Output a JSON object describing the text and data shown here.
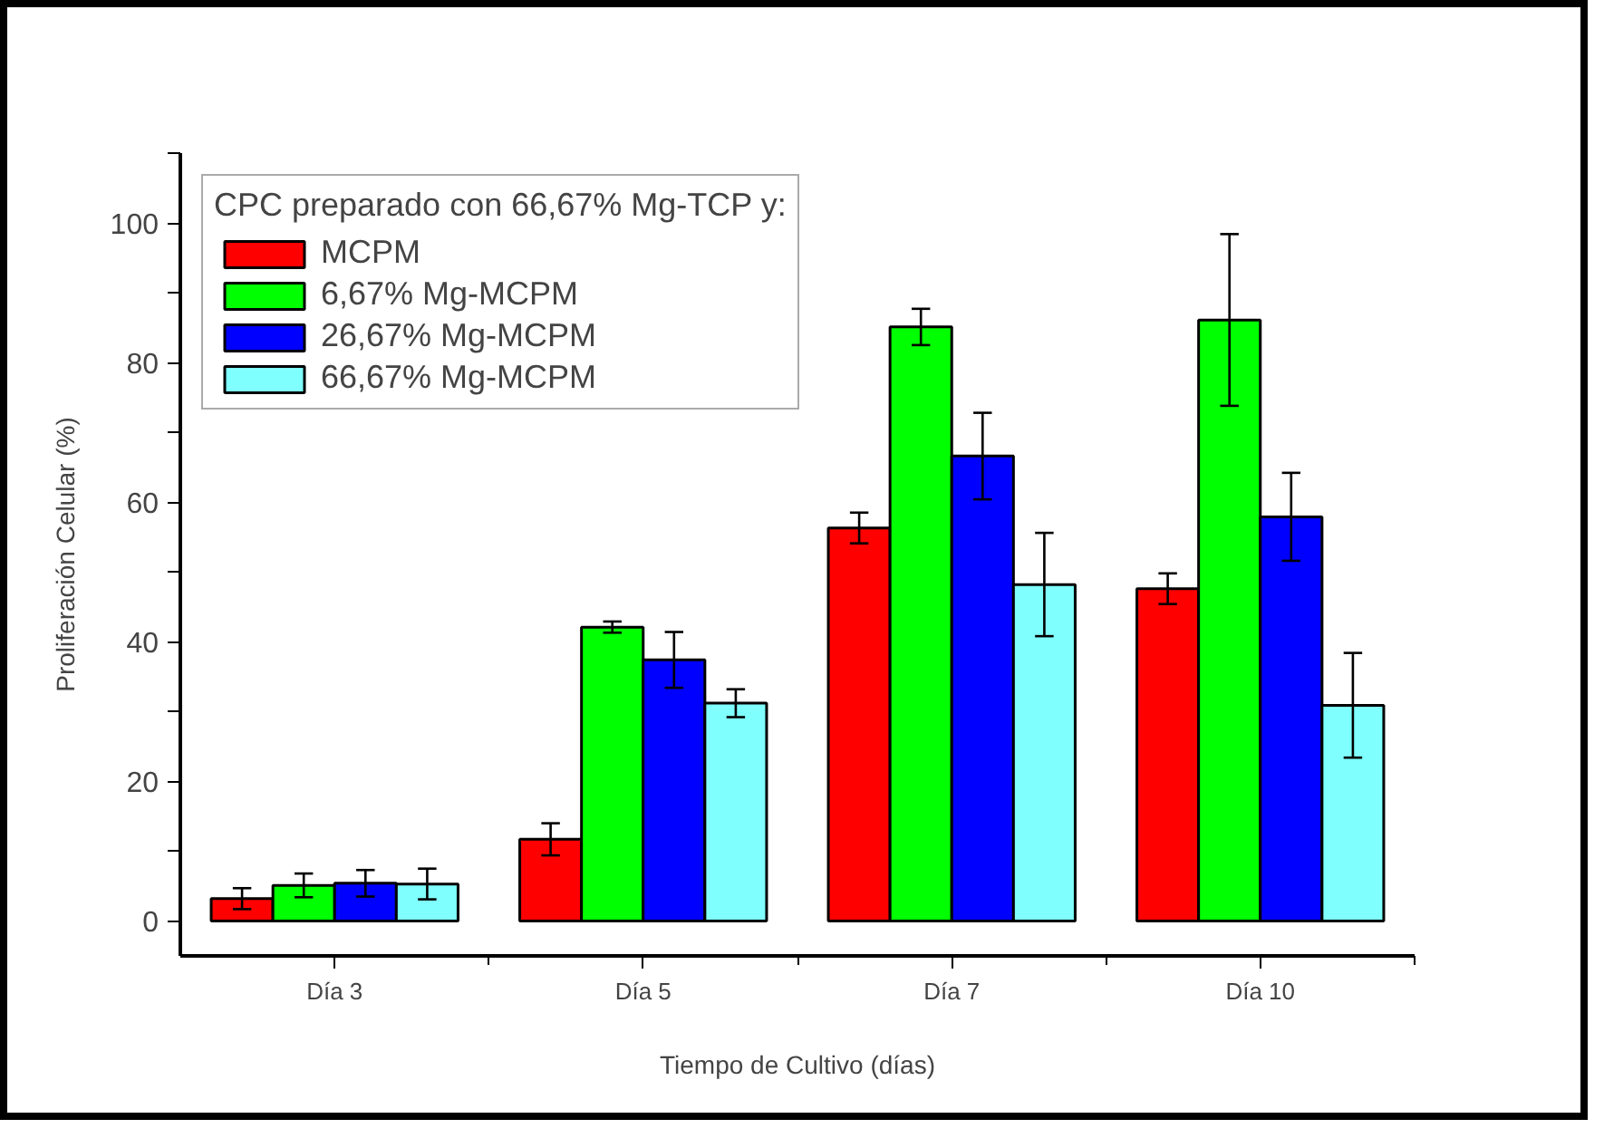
{
  "chart_data": {
    "type": "bar",
    "xlabel": "Tiempo de Cultivo (días)",
    "ylabel": "Proliferación Celular (%)",
    "legend_title": "CPC preparado con 66,67% Mg-TCP y:",
    "categories": [
      "Día 3",
      "Día 5",
      "Día 7",
      "Día 10"
    ],
    "series": [
      {
        "name": "MCPM",
        "color": "#ff0000",
        "values": [
          3.2,
          11.7,
          56.3,
          47.6
        ],
        "errors": [
          1.5,
          2.3,
          2.2,
          2.2
        ]
      },
      {
        "name": "6,67% Mg-MCPM",
        "color": "#00ff00",
        "values": [
          5.1,
          42.1,
          85.1,
          86.1
        ],
        "errors": [
          1.7,
          0.8,
          2.6,
          12.3
        ]
      },
      {
        "name": "26,67% Mg-MCPM",
        "color": "#0000ff",
        "values": [
          5.4,
          37.4,
          66.6,
          57.9
        ],
        "errors": [
          1.9,
          4.0,
          6.2,
          6.3
        ]
      },
      {
        "name": "66,67% Mg-MCPM",
        "color": "#80ffff",
        "values": [
          5.3,
          31.2,
          48.2,
          30.9
        ],
        "errors": [
          2.2,
          2.0,
          7.4,
          7.5
        ]
      }
    ],
    "ylim": [
      -5,
      110
    ],
    "yticks": [
      0,
      {
        "value": 10,
        "label": null
      },
      20,
      {
        "value": 30,
        "label": null
      },
      40,
      {
        "value": 50,
        "label": null
      },
      60,
      {
        "value": 70,
        "label": null
      },
      80,
      {
        "value": 90,
        "label": null
      },
      100,
      {
        "value": 110,
        "label": null
      }
    ],
    "grid": false,
    "legend": "top left"
  }
}
